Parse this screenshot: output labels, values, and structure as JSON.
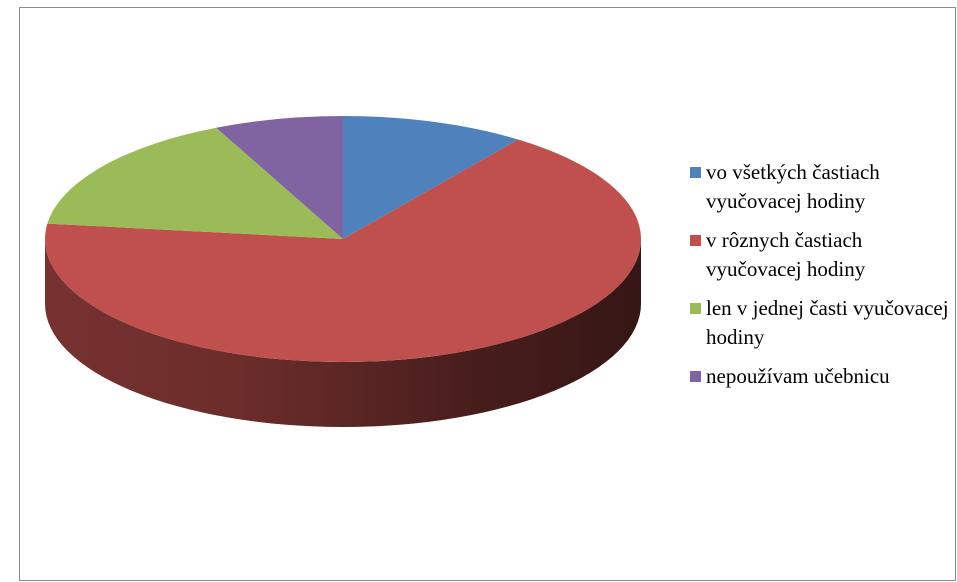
{
  "chart_data": {
    "type": "pie",
    "style": "3d",
    "title": "",
    "legend_position": "right",
    "series": [
      {
        "labels": [
          "vo všetkých častiach vyučovacej hodiny",
          "v rôznych častiach vyučovacej hodiny",
          "len v jednej časti vyučovacej hodiny",
          "nepoužívam učebnicu"
        ],
        "values": [
          10,
          67,
          16,
          7
        ],
        "colors": [
          "#4f81bd",
          "#c0504d",
          "#9bbb59",
          "#8064a2"
        ]
      }
    ]
  }
}
